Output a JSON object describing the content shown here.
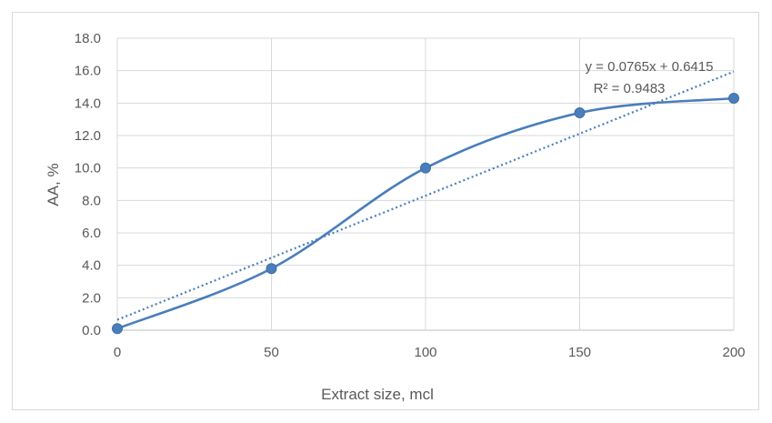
{
  "chart_data": {
    "type": "scatter",
    "title": "",
    "xlabel": "Extract size, mcl",
    "ylabel": "AA, %",
    "xlim": [
      0,
      200
    ],
    "ylim": [
      0,
      18
    ],
    "xticks": [
      0,
      50,
      100,
      150,
      200
    ],
    "xtick_labels": [
      "0",
      "50",
      "100",
      "150",
      "200"
    ],
    "yticks": [
      0,
      2,
      4,
      6,
      8,
      10,
      12,
      14,
      16,
      18
    ],
    "ytick_labels": [
      "0.0",
      "2.0",
      "4.0",
      "6.0",
      "8.0",
      "10.0",
      "12.0",
      "14.0",
      "16.0",
      "18.0"
    ],
    "grid": "vertical and horizontal",
    "legend": "none",
    "series": [
      {
        "x": [
          0,
          50,
          100,
          150,
          200
        ],
        "values": [
          0.1,
          3.8,
          10.0,
          13.4,
          14.3
        ],
        "style": "smoothed line with markers",
        "color": "#4a7ebb"
      }
    ],
    "trendline": {
      "type": "linear",
      "slope": 0.0765,
      "intercept": 0.6415,
      "style": "dotted",
      "color": "#4a7ebb",
      "equation_label": "y = 0.0765x + 0.6415",
      "r2_label": "R² = 0.9483"
    }
  }
}
